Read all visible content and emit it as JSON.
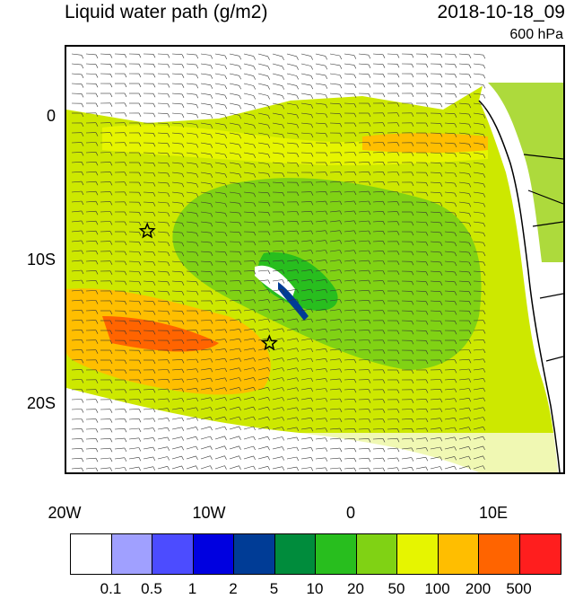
{
  "header": {
    "title": "Liquid water path (g/m2)",
    "datetime": "2018-10-18_09",
    "level": "600 hPa"
  },
  "map": {
    "lat_labels": [
      "0",
      "10S",
      "20S"
    ],
    "lon_labels": [
      "20W",
      "10W",
      "0",
      "10E"
    ],
    "markers": [
      {
        "name": "star-marker",
        "lon": -14.3,
        "lat": -8.0
      },
      {
        "name": "star-marker",
        "lon": -5.7,
        "lat": -15.9
      }
    ]
  },
  "colorbar": {
    "colors": [
      "#ffffff",
      "#a0a0ff",
      "#4c4cff",
      "#0000e0",
      "#003c96",
      "#008c3c",
      "#28be1e",
      "#80d214",
      "#e6f500",
      "#ffbe00",
      "#ff6400",
      "#ff1e1e"
    ],
    "labels": [
      "0.1",
      "0.5",
      "1",
      "2",
      "5",
      "10",
      "20",
      "50",
      "100",
      "200",
      "500"
    ]
  }
}
